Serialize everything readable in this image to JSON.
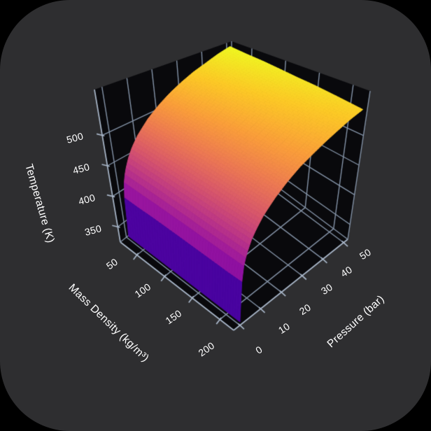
{
  "app": {
    "outer_background": "#000000",
    "tile_background": "#2e2e30"
  },
  "chart_data": {
    "type": "surface",
    "title": "",
    "grid": true,
    "axes": {
      "x": {
        "label": "Mass Density (kg/m³)",
        "ticks": [
          50,
          100,
          150,
          200
        ],
        "range": [
          20,
          225
        ]
      },
      "y": {
        "label": "Pressure (bar)",
        "ticks": [
          0,
          10,
          20,
          30,
          40,
          50
        ],
        "range": [
          -3,
          52
        ]
      },
      "z": {
        "label": "Temperature (K)",
        "ticks": [
          350,
          400,
          450,
          500
        ],
        "range": [
          325,
          575
        ]
      }
    },
    "surface": {
      "x_densities": [
        25,
        50,
        75,
        100,
        125,
        150,
        175,
        200,
        225
      ],
      "y_pressures": [
        0,
        1,
        2,
        3,
        5,
        7,
        10,
        15,
        20,
        25,
        30,
        35,
        40,
        45,
        50
      ],
      "z_temperatures": [
        [
          330,
          404,
          421,
          433,
          450,
          463,
          478,
          497,
          512,
          525,
          536,
          546,
          554,
          563,
          570
        ],
        [
          330,
          403,
          420,
          432,
          449,
          462,
          476,
          495,
          510,
          523,
          534,
          543,
          552,
          560,
          567
        ],
        [
          330,
          403,
          419,
          431,
          448,
          460,
          475,
          493,
          508,
          521,
          531,
          541,
          549,
          557,
          565
        ],
        [
          330,
          402,
          418,
          430,
          446,
          459,
          473,
          492,
          506,
          518,
          529,
          538,
          547,
          555,
          562
        ],
        [
          330,
          401,
          417,
          429,
          445,
          457,
          471,
          490,
          504,
          516,
          527,
          536,
          544,
          552,
          559
        ],
        [
          330,
          400,
          416,
          427,
          444,
          456,
          470,
          488,
          502,
          514,
          524,
          534,
          542,
          549,
          557
        ],
        [
          330,
          399,
          415,
          426,
          442,
          454,
          468,
          486,
          500,
          512,
          522,
          531,
          539,
          547,
          554
        ],
        [
          330,
          398,
          414,
          425,
          441,
          453,
          466,
          484,
          498,
          510,
          520,
          529,
          537,
          544,
          551
        ],
        [
          330,
          398,
          413,
          424,
          440,
          451,
          465,
          482,
          496,
          508,
          517,
          526,
          534,
          542,
          548
        ]
      ],
      "color_range": [
        330,
        570
      ]
    },
    "colormap": {
      "name": "plasma",
      "stops": [
        "#0d0887",
        "#46039f",
        "#7201a8",
        "#9c179e",
        "#bd3786",
        "#d8576b",
        "#ed7953",
        "#fb9f3a",
        "#fdca26",
        "#f0f921"
      ]
    },
    "style": {
      "wall_color": "#09090c",
      "grid_color": "#8493a7",
      "axis_color": "#a9b7c9",
      "text_color": "#ffffff"
    }
  }
}
